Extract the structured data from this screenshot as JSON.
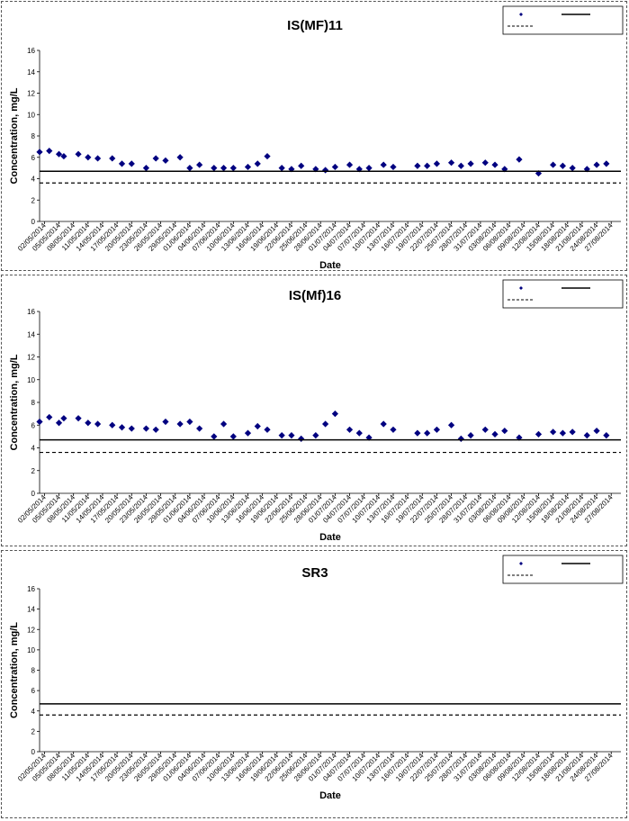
{
  "chart_data": [
    {
      "type": "scatter",
      "title": "IS(MF)11",
      "xlabel": "Date",
      "ylabel": "Concentration, mg/L",
      "ylim": [
        0,
        16
      ],
      "yticks": [
        0,
        2,
        4,
        6,
        8,
        10,
        12,
        14,
        16
      ],
      "grid": false,
      "legend_position": "top-right",
      "x_tick_labels": [
        "02/05/2014",
        "05/05/2014",
        "08/05/2014",
        "11/05/2014",
        "14/05/2014",
        "17/05/2014",
        "20/05/2014",
        "23/05/2014",
        "26/05/2014",
        "29/05/2014",
        "01/06/2014",
        "04/06/2014",
        "07/06/2014",
        "10/06/2014",
        "13/06/2014",
        "16/06/2014",
        "19/06/2014",
        "22/06/2014",
        "25/06/2014",
        "28/06/2014",
        "01/07/2014",
        "04/07/2014",
        "07/07/2014",
        "10/07/2014",
        "13/07/2014",
        "16/07/2014",
        "19/07/2014",
        "22/07/2014",
        "25/07/2014",
        "28/07/2014",
        "31/07/2014",
        "03/08/2014",
        "06/08/2014",
        "09/08/2014",
        "12/08/2014",
        "15/08/2014",
        "18/08/2014",
        "21/08/2014",
        "24/08/2014",
        "27/08/2014"
      ],
      "x_range": [
        "2014-05-01",
        "2014-08-29"
      ],
      "series": [
        {
          "type": "scatter",
          "color": "#000080",
          "points": [
            {
              "x": "2014-05-01",
              "y": 6.5
            },
            {
              "x": "2014-05-03",
              "y": 6.6
            },
            {
              "x": "2014-05-05",
              "y": 6.3
            },
            {
              "x": "2014-05-06",
              "y": 6.1
            },
            {
              "x": "2014-05-09",
              "y": 6.3
            },
            {
              "x": "2014-05-11",
              "y": 6.0
            },
            {
              "x": "2014-05-13",
              "y": 5.9
            },
            {
              "x": "2014-05-16",
              "y": 5.9
            },
            {
              "x": "2014-05-18",
              "y": 5.4
            },
            {
              "x": "2014-05-20",
              "y": 5.4
            },
            {
              "x": "2014-05-23",
              "y": 5.0
            },
            {
              "x": "2014-05-25",
              "y": 5.9
            },
            {
              "x": "2014-05-27",
              "y": 5.7
            },
            {
              "x": "2014-05-30",
              "y": 6.0
            },
            {
              "x": "2014-06-01",
              "y": 5.0
            },
            {
              "x": "2014-06-03",
              "y": 5.3
            },
            {
              "x": "2014-06-06",
              "y": 5.0
            },
            {
              "x": "2014-06-08",
              "y": 5.0
            },
            {
              "x": "2014-06-10",
              "y": 5.0
            },
            {
              "x": "2014-06-13",
              "y": 5.1
            },
            {
              "x": "2014-06-15",
              "y": 5.4
            },
            {
              "x": "2014-06-17",
              "y": 6.1
            },
            {
              "x": "2014-06-20",
              "y": 5.0
            },
            {
              "x": "2014-06-22",
              "y": 4.9
            },
            {
              "x": "2014-06-24",
              "y": 5.2
            },
            {
              "x": "2014-06-27",
              "y": 4.9
            },
            {
              "x": "2014-06-29",
              "y": 4.8
            },
            {
              "x": "2014-07-01",
              "y": 5.1
            },
            {
              "x": "2014-07-04",
              "y": 5.3
            },
            {
              "x": "2014-07-06",
              "y": 4.9
            },
            {
              "x": "2014-07-08",
              "y": 5.0
            },
            {
              "x": "2014-07-11",
              "y": 5.3
            },
            {
              "x": "2014-07-13",
              "y": 5.1
            },
            {
              "x": "2014-07-18",
              "y": 5.2
            },
            {
              "x": "2014-07-20",
              "y": 5.2
            },
            {
              "x": "2014-07-22",
              "y": 5.4
            },
            {
              "x": "2014-07-25",
              "y": 5.5
            },
            {
              "x": "2014-07-27",
              "y": 5.2
            },
            {
              "x": "2014-07-29",
              "y": 5.4
            },
            {
              "x": "2014-08-01",
              "y": 5.5
            },
            {
              "x": "2014-08-03",
              "y": 5.3
            },
            {
              "x": "2014-08-05",
              "y": 4.9
            },
            {
              "x": "2014-08-08",
              "y": 5.8
            },
            {
              "x": "2014-08-12",
              "y": 4.5
            },
            {
              "x": "2014-08-15",
              "y": 5.3
            },
            {
              "x": "2014-08-17",
              "y": 5.2
            },
            {
              "x": "2014-08-19",
              "y": 5.0
            },
            {
              "x": "2014-08-22",
              "y": 4.9
            },
            {
              "x": "2014-08-24",
              "y": 5.3
            },
            {
              "x": "2014-08-26",
              "y": 5.4
            }
          ]
        },
        {
          "type": "hline",
          "y": 4.7,
          "style": "solid",
          "color": "#000000"
        },
        {
          "type": "hline",
          "y": 3.6,
          "style": "dashed",
          "color": "#000000"
        }
      ]
    },
    {
      "type": "scatter",
      "title": "IS(Mf)16",
      "xlabel": "Date",
      "ylabel": "Concentration, mg/L",
      "ylim": [
        0,
        16
      ],
      "yticks": [
        0,
        2,
        4,
        6,
        8,
        10,
        12,
        14,
        16
      ],
      "grid": false,
      "legend_position": "top-right",
      "x_tick_labels": [
        "02/05/2014",
        "05/05/2014",
        "08/05/2014",
        "11/05/2014",
        "14/05/2014",
        "17/05/2014",
        "20/05/2014",
        "23/05/2014",
        "26/05/2014",
        "29/05/2014",
        "01/06/2014",
        "04/06/2014",
        "07/06/2014",
        "10/06/2014",
        "13/06/2014",
        "16/06/2014",
        "19/06/2014",
        "22/06/2014",
        "25/06/2014",
        "28/06/2014",
        "01/07/2014",
        "04/07/2014",
        "07/07/2014",
        "10/07/2014",
        "13/07/2014",
        "16/07/2014",
        "19/07/2014",
        "22/07/2014",
        "25/07/2014",
        "28/07/2014",
        "31/07/2014",
        "03/08/2014",
        "06/08/2014",
        "09/08/2014",
        "12/08/2014",
        "15/08/2014",
        "18/08/2014",
        "21/08/2014",
        "24/08/2014",
        "27/08/2014"
      ],
      "x_range": [
        "2014-05-01",
        "2014-08-29"
      ],
      "series": [
        {
          "type": "scatter",
          "color": "#000080",
          "points": [
            {
              "x": "2014-05-01",
              "y": 6.3
            },
            {
              "x": "2014-05-03",
              "y": 6.7
            },
            {
              "x": "2014-05-05",
              "y": 6.2
            },
            {
              "x": "2014-05-06",
              "y": 6.6
            },
            {
              "x": "2014-05-09",
              "y": 6.6
            },
            {
              "x": "2014-05-11",
              "y": 6.2
            },
            {
              "x": "2014-05-13",
              "y": 6.1
            },
            {
              "x": "2014-05-16",
              "y": 6.0
            },
            {
              "x": "2014-05-18",
              "y": 5.8
            },
            {
              "x": "2014-05-20",
              "y": 5.7
            },
            {
              "x": "2014-05-23",
              "y": 5.7
            },
            {
              "x": "2014-05-25",
              "y": 5.6
            },
            {
              "x": "2014-05-27",
              "y": 6.3
            },
            {
              "x": "2014-05-30",
              "y": 6.1
            },
            {
              "x": "2014-06-01",
              "y": 6.3
            },
            {
              "x": "2014-06-03",
              "y": 5.7
            },
            {
              "x": "2014-06-06",
              "y": 5.0
            },
            {
              "x": "2014-06-08",
              "y": 6.1
            },
            {
              "x": "2014-06-10",
              "y": 5.0
            },
            {
              "x": "2014-06-13",
              "y": 5.3
            },
            {
              "x": "2014-06-15",
              "y": 5.9
            },
            {
              "x": "2014-06-17",
              "y": 5.6
            },
            {
              "x": "2014-06-20",
              "y": 5.1
            },
            {
              "x": "2014-06-22",
              "y": 5.1
            },
            {
              "x": "2014-06-24",
              "y": 4.8
            },
            {
              "x": "2014-06-27",
              "y": 5.1
            },
            {
              "x": "2014-06-29",
              "y": 6.1
            },
            {
              "x": "2014-07-01",
              "y": 7.0
            },
            {
              "x": "2014-07-04",
              "y": 5.6
            },
            {
              "x": "2014-07-06",
              "y": 5.3
            },
            {
              "x": "2014-07-08",
              "y": 4.9
            },
            {
              "x": "2014-07-11",
              "y": 6.1
            },
            {
              "x": "2014-07-13",
              "y": 5.6
            },
            {
              "x": "2014-07-18",
              "y": 5.3
            },
            {
              "x": "2014-07-20",
              "y": 5.3
            },
            {
              "x": "2014-07-22",
              "y": 5.6
            },
            {
              "x": "2014-07-25",
              "y": 6.0
            },
            {
              "x": "2014-07-27",
              "y": 4.8
            },
            {
              "x": "2014-07-29",
              "y": 5.1
            },
            {
              "x": "2014-08-01",
              "y": 5.6
            },
            {
              "x": "2014-08-03",
              "y": 5.2
            },
            {
              "x": "2014-08-05",
              "y": 5.5
            },
            {
              "x": "2014-08-08",
              "y": 4.9
            },
            {
              "x": "2014-08-12",
              "y": 5.2
            },
            {
              "x": "2014-08-15",
              "y": 5.4
            },
            {
              "x": "2014-08-17",
              "y": 5.3
            },
            {
              "x": "2014-08-19",
              "y": 5.4
            },
            {
              "x": "2014-08-22",
              "y": 5.1
            },
            {
              "x": "2014-08-24",
              "y": 5.5
            },
            {
              "x": "2014-08-26",
              "y": 5.1
            }
          ]
        },
        {
          "type": "hline",
          "y": 4.7,
          "style": "solid",
          "color": "#000000"
        },
        {
          "type": "hline",
          "y": 3.6,
          "style": "dashed",
          "color": "#000000"
        }
      ]
    },
    {
      "type": "scatter",
      "title": "SR3",
      "xlabel": "Date",
      "ylabel": "Concentration, mg/L",
      "ylim": [
        0,
        16
      ],
      "yticks": [
        0,
        2,
        4,
        6,
        8,
        10,
        12,
        14,
        16
      ],
      "grid": false,
      "legend_position": "top-right",
      "x_tick_labels": [
        "02/05/2014",
        "05/05/2014",
        "08/05/2014",
        "11/05/2014",
        "14/05/2014",
        "17/05/2014",
        "20/05/2014",
        "23/05/2014",
        "26/05/2014",
        "29/05/2014",
        "01/06/2014",
        "04/06/2014",
        "07/06/2014",
        "10/06/2014",
        "13/06/2014",
        "16/06/2014",
        "19/06/2014",
        "22/06/2014",
        "25/06/2014",
        "28/06/2014",
        "01/07/2014",
        "04/07/2014",
        "07/07/2014",
        "10/07/2014",
        "13/07/2014",
        "16/07/2014",
        "19/07/2014",
        "22/07/2014",
        "25/07/2014",
        "28/07/2014",
        "31/07/2014",
        "03/08/2014",
        "06/08/2014",
        "09/08/2014",
        "12/08/2014",
        "15/08/2014",
        "18/08/2014",
        "21/08/2014",
        "24/08/2014",
        "27/08/2014"
      ],
      "x_range": [
        "2014-05-01",
        "2014-08-29"
      ],
      "series": [
        {
          "type": "scatter",
          "color": "#000080",
          "points": []
        },
        {
          "type": "hline",
          "y": 4.7,
          "style": "solid",
          "color": "#000000"
        },
        {
          "type": "hline",
          "y": 3.6,
          "style": "dashed",
          "color": "#000000"
        }
      ]
    }
  ]
}
